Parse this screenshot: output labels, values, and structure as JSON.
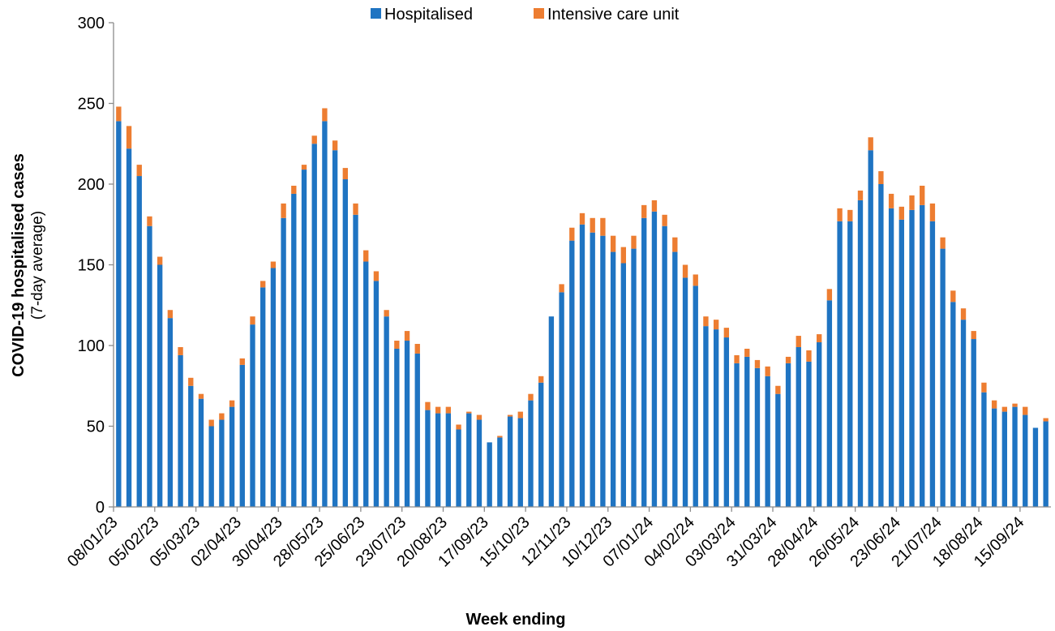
{
  "chart_data": {
    "type": "bar",
    "stacked": true,
    "xlabel": "Week ending",
    "ylabel": "COVID-19 hospitalised  cases",
    "ylabel_sub": "(7-day average)",
    "ylim": [
      0,
      300
    ],
    "yticks": [
      0,
      50,
      100,
      150,
      200,
      250,
      300
    ],
    "grid": false,
    "legend_position": "top-center",
    "x_tick_labels": [
      "08/01/23",
      "05/02/23",
      "05/03/23",
      "02/04/23",
      "30/04/23",
      "28/05/23",
      "25/06/23",
      "23/07/23",
      "20/08/23",
      "17/09/23",
      "15/10/23",
      "12/11/23",
      "10/12/23",
      "07/01/24",
      "04/02/24",
      "03/03/24",
      "31/03/24",
      "28/04/24",
      "26/05/24",
      "23/06/24",
      "21/07/24",
      "18/08/24",
      "15/09/24"
    ],
    "series": [
      {
        "name": "Hospitalised",
        "color": "#1f74c2",
        "values": [
          239,
          222,
          205,
          174,
          150,
          117,
          94,
          75,
          67,
          50,
          54,
          62,
          88,
          113,
          136,
          148,
          179,
          194,
          209,
          225,
          239,
          221,
          203,
          181,
          152,
          140,
          118,
          98,
          103,
          95,
          60,
          58,
          58,
          48,
          58,
          54,
          40,
          43,
          56,
          55,
          66,
          77,
          118,
          133,
          165,
          175,
          170,
          168,
          158,
          151,
          160,
          179,
          183,
          174,
          158,
          142,
          137,
          112,
          110,
          105,
          89,
          93,
          86,
          81,
          70,
          89,
          99,
          90,
          102,
          128,
          177,
          177,
          190,
          221,
          200,
          185,
          178,
          184,
          187,
          177,
          160,
          127,
          116,
          104,
          71,
          61,
          59,
          62,
          57,
          49,
          53
        ]
      },
      {
        "name": "Intensive care unit",
        "color": "#ed7d31",
        "values": [
          9,
          14,
          7,
          6,
          5,
          5,
          5,
          5,
          3,
          4,
          4,
          4,
          4,
          5,
          4,
          4,
          9,
          5,
          3,
          5,
          8,
          6,
          7,
          7,
          7,
          6,
          4,
          5,
          6,
          6,
          5,
          4,
          4,
          3,
          1,
          3,
          0,
          1,
          1,
          4,
          4,
          4,
          0,
          5,
          8,
          7,
          9,
          11,
          10,
          10,
          8,
          8,
          7,
          7,
          9,
          8,
          7,
          6,
          6,
          6,
          5,
          5,
          5,
          6,
          5,
          4,
          7,
          7,
          5,
          7,
          8,
          7,
          6,
          8,
          8,
          9,
          8,
          9,
          12,
          11,
          7,
          7,
          7,
          5,
          6,
          5,
          3,
          2,
          5,
          0,
          2
        ]
      }
    ]
  }
}
